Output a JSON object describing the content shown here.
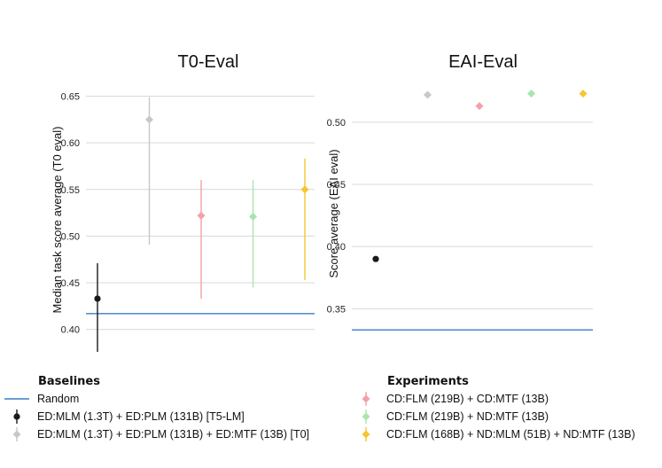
{
  "chart_data": [
    {
      "type": "scatter",
      "title": "T0-Eval",
      "ylabel": "Median task score average (T0 eval)",
      "ylim": [
        0.375,
        0.66
      ],
      "yticks": [
        "0.40",
        "0.45",
        "0.50",
        "0.55",
        "0.60",
        "0.65"
      ],
      "grid": true,
      "random_baseline": 0.417,
      "points": [
        {
          "series": "ED:MLM (1.3T) + ED:PLM (131B) [T5-LM]",
          "x": 1,
          "y": 0.433,
          "lo": 0.376,
          "hi": 0.471,
          "color": "#1a1a1a",
          "marker": "circle"
        },
        {
          "series": "ED:MLM (1.3T) + ED:PLM (131B) + ED:MTF (13B) [T0]",
          "x": 2,
          "y": 0.625,
          "lo": 0.491,
          "hi": 0.649,
          "color": "#c8c8c8",
          "marker": "diamond"
        },
        {
          "series": "CD:FLM (219B) + CD:MTF (13B)",
          "x": 3,
          "y": 0.522,
          "lo": 0.433,
          "hi": 0.56,
          "color": "#f4a0a8",
          "marker": "diamond"
        },
        {
          "series": "CD:FLM (219B) + ND:MTF (13B)",
          "x": 4,
          "y": 0.521,
          "lo": 0.445,
          "hi": 0.56,
          "color": "#a8e6ac",
          "marker": "diamond"
        },
        {
          "series": "CD:FLM (168B) + ND:MLM (51B) + ND:MTF (13B)",
          "x": 5,
          "y": 0.55,
          "lo": 0.453,
          "hi": 0.583,
          "color": "#f6c630",
          "marker": "diamond"
        }
      ]
    },
    {
      "type": "scatter",
      "title": "EAI-Eval",
      "ylabel": "Score average (EAI eval)",
      "ylim": [
        0.326,
        0.527
      ],
      "yticks": [
        "0.35",
        "0.40",
        "0.45",
        "0.50"
      ],
      "grid": true,
      "random_baseline": 0.333,
      "points": [
        {
          "series": "ED:MLM (1.3T) + ED:PLM (131B) [T5-LM]",
          "x": 1,
          "y": 0.39,
          "color": "#1a1a1a",
          "marker": "circle"
        },
        {
          "series": "ED:MLM (1.3T) + ED:PLM (131B) + ED:MTF (13B) [T0]",
          "x": 2,
          "y": 0.522,
          "color": "#c8c8c8",
          "marker": "diamond"
        },
        {
          "series": "CD:FLM (219B) + CD:MTF (13B)",
          "x": 3,
          "y": 0.513,
          "color": "#f4a0a8",
          "marker": "diamond"
        },
        {
          "series": "CD:FLM (219B) + ND:MTF (13B)",
          "x": 4,
          "y": 0.523,
          "color": "#a8e6ac",
          "marker": "diamond"
        },
        {
          "series": "CD:FLM (168B) + ND:MLM (51B) + ND:MTF (13B)",
          "x": 5,
          "y": 0.523,
          "color": "#f6c630",
          "marker": "diamond"
        }
      ]
    }
  ],
  "legend": {
    "baselines": {
      "title": "Baselines",
      "items": [
        {
          "label": "Random",
          "kind": "line",
          "color": "#3a7ec8"
        },
        {
          "label": "ED:MLM (1.3T) + ED:PLM (131B) [T5-LM]",
          "kind": "circle",
          "color": "#1a1a1a"
        },
        {
          "label": "ED:MLM (1.3T) + ED:PLM (131B) + ED:MTF (13B) [T0]",
          "kind": "diamond",
          "color": "#c8c8c8"
        }
      ]
    },
    "experiments": {
      "title": "Experiments",
      "items": [
        {
          "label": "CD:FLM (219B) + CD:MTF (13B)",
          "kind": "diamond",
          "color": "#f4a0a8"
        },
        {
          "label": "CD:FLM (219B) + ND:MTF (13B)",
          "kind": "diamond",
          "color": "#a8e6ac"
        },
        {
          "label": "CD:FLM (168B) + ND:MLM (51B) + ND:MTF (13B)",
          "kind": "diamond",
          "color": "#f6c630"
        }
      ]
    }
  },
  "colors": {
    "grid": "#d9d9d9",
    "random_line": "#3a7ec8",
    "text": "#111111"
  }
}
